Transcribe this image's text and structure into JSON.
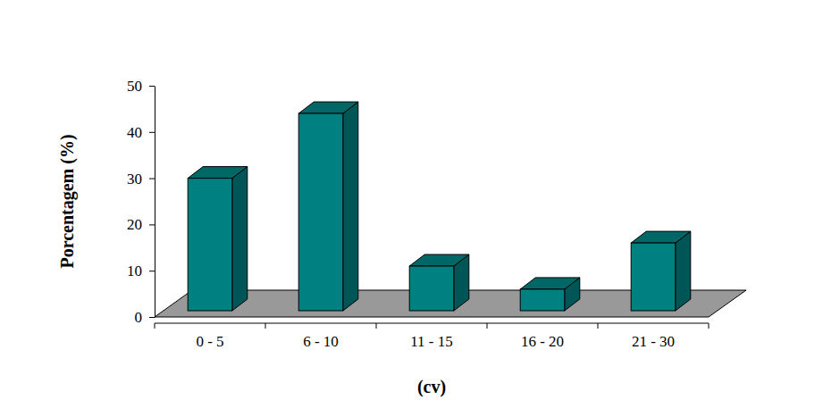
{
  "chart_data": {
    "type": "bar",
    "categories": [
      "0 - 5",
      "6 - 10",
      "11 - 15",
      "16 - 20",
      "21 - 30"
    ],
    "values": [
      30,
      44,
      11,
      6,
      16
    ],
    "color": "#008080",
    "xlabel": "(cv)",
    "ylabel": "Porcentagem (%)",
    "ylim": [
      0,
      50
    ],
    "yticks": [
      0,
      10,
      20,
      30,
      40,
      50
    ],
    "grid": false
  }
}
